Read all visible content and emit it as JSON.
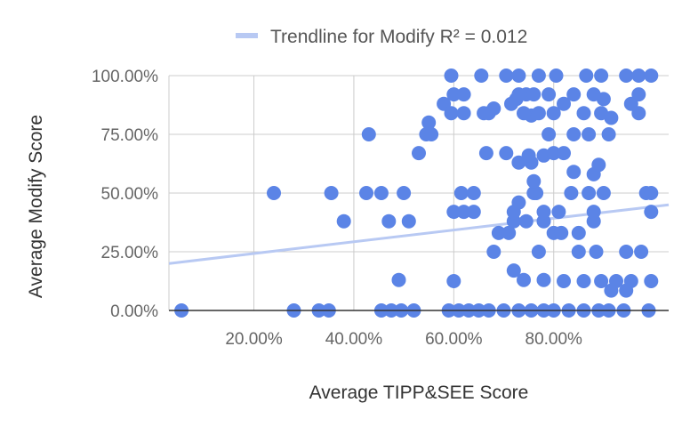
{
  "colors": {
    "points": "#5b84e6",
    "trendline": "#b8c9f3",
    "grid": "#cccccc",
    "axis": "#333333"
  },
  "legend": {
    "label": "Trendline for Modify R² = 0.012",
    "position": "top"
  },
  "chart_data": {
    "type": "scatter",
    "xlabel": "Average TIPP&SEE Score",
    "ylabel": "Average Modify Score",
    "xlim": [
      0.03,
      1.03
    ],
    "ylim": [
      0,
      1
    ],
    "xticks": [
      0.2,
      0.4,
      0.6,
      0.8
    ],
    "xtick_labels": [
      "20.00%",
      "40.00%",
      "60.00%",
      "80.00%"
    ],
    "yticks": [
      0,
      0.25,
      0.5,
      0.75,
      1
    ],
    "ytick_labels": [
      "0.00%",
      "25.00%",
      "50.00%",
      "75.00%",
      "100.00%"
    ],
    "grid": true,
    "trendline": {
      "name": "Trendline for Modify",
      "r_squared": 0.012,
      "start": [
        0.03,
        0.2
      ],
      "end": [
        1.03,
        0.45
      ]
    },
    "series": [
      {
        "points": [
          [
            0.055,
            0
          ],
          [
            0.28,
            0
          ],
          [
            0.33,
            0
          ],
          [
            0.35,
            0
          ],
          [
            0.455,
            0
          ],
          [
            0.475,
            0
          ],
          [
            0.495,
            0
          ],
          [
            0.52,
            0
          ],
          [
            0.59,
            0
          ],
          [
            0.61,
            0
          ],
          [
            0.63,
            0
          ],
          [
            0.65,
            0
          ],
          [
            0.67,
            0
          ],
          [
            0.7,
            0
          ],
          [
            0.73,
            0
          ],
          [
            0.755,
            0
          ],
          [
            0.78,
            0
          ],
          [
            0.8,
            0
          ],
          [
            0.83,
            0
          ],
          [
            0.86,
            0
          ],
          [
            0.89,
            0
          ],
          [
            0.91,
            0
          ],
          [
            0.94,
            0
          ],
          [
            0.99,
            0
          ],
          [
            0.6,
            0.125
          ],
          [
            0.82,
            0.125
          ],
          [
            0.86,
            0.125
          ],
          [
            0.895,
            0.125
          ],
          [
            0.925,
            0.125
          ],
          [
            0.955,
            0.125
          ],
          [
            0.995,
            0.125
          ],
          [
            0.49,
            0.13
          ],
          [
            0.74,
            0.13
          ],
          [
            0.78,
            0.13
          ],
          [
            0.915,
            0.085
          ],
          [
            0.945,
            0.085
          ],
          [
            0.72,
            0.17
          ],
          [
            0.68,
            0.25
          ],
          [
            0.77,
            0.25
          ],
          [
            0.85,
            0.25
          ],
          [
            0.885,
            0.25
          ],
          [
            0.945,
            0.25
          ],
          [
            0.975,
            0.25
          ],
          [
            0.69,
            0.33
          ],
          [
            0.71,
            0.33
          ],
          [
            0.8,
            0.33
          ],
          [
            0.815,
            0.33
          ],
          [
            0.85,
            0.33
          ],
          [
            0.24,
            0.5
          ],
          [
            0.355,
            0.5
          ],
          [
            0.425,
            0.5
          ],
          [
            0.455,
            0.5
          ],
          [
            0.5,
            0.5
          ],
          [
            0.615,
            0.5
          ],
          [
            0.64,
            0.5
          ],
          [
            0.765,
            0.5
          ],
          [
            0.835,
            0.5
          ],
          [
            0.87,
            0.5
          ],
          [
            0.9,
            0.5
          ],
          [
            0.985,
            0.5
          ],
          [
            0.995,
            0.5
          ],
          [
            0.38,
            0.38
          ],
          [
            0.47,
            0.38
          ],
          [
            0.51,
            0.38
          ],
          [
            0.72,
            0.38
          ],
          [
            0.745,
            0.38
          ],
          [
            0.78,
            0.38
          ],
          [
            0.88,
            0.38
          ],
          [
            0.6,
            0.42
          ],
          [
            0.62,
            0.42
          ],
          [
            0.64,
            0.42
          ],
          [
            0.72,
            0.42
          ],
          [
            0.78,
            0.42
          ],
          [
            0.81,
            0.42
          ],
          [
            0.88,
            0.42
          ],
          [
            0.995,
            0.42
          ],
          [
            0.73,
            0.46
          ],
          [
            0.76,
            0.5
          ],
          [
            0.76,
            0.55
          ],
          [
            0.73,
            0.63
          ],
          [
            0.755,
            0.63
          ],
          [
            0.75,
            0.66
          ],
          [
            0.78,
            0.66
          ],
          [
            0.8,
            0.67
          ],
          [
            0.82,
            0.67
          ],
          [
            0.665,
            0.67
          ],
          [
            0.705,
            0.67
          ],
          [
            0.84,
            0.59
          ],
          [
            0.88,
            0.58
          ],
          [
            0.89,
            0.62
          ],
          [
            0.43,
            0.75
          ],
          [
            0.53,
            0.67
          ],
          [
            0.545,
            0.75
          ],
          [
            0.555,
            0.75
          ],
          [
            0.79,
            0.75
          ],
          [
            0.84,
            0.75
          ],
          [
            0.87,
            0.75
          ],
          [
            0.91,
            0.75
          ],
          [
            0.55,
            0.8
          ],
          [
            0.755,
            0.83
          ],
          [
            0.62,
            0.84
          ],
          [
            0.67,
            0.84
          ],
          [
            0.715,
            0.88
          ],
          [
            0.725,
            0.9
          ],
          [
            0.745,
            0.92
          ],
          [
            0.79,
            0.92
          ],
          [
            0.84,
            0.92
          ],
          [
            0.88,
            0.92
          ],
          [
            0.9,
            0.9
          ],
          [
            0.955,
            0.88
          ],
          [
            0.97,
            0.92
          ],
          [
            0.82,
            0.88
          ],
          [
            0.915,
            0.82
          ],
          [
            0.58,
            0.88
          ],
          [
            0.595,
            0.84
          ],
          [
            0.66,
            0.84
          ],
          [
            0.68,
            0.86
          ],
          [
            0.74,
            0.84
          ],
          [
            0.77,
            0.84
          ],
          [
            0.8,
            0.84
          ],
          [
            0.86,
            0.84
          ],
          [
            0.895,
            0.84
          ],
          [
            0.97,
            0.84
          ],
          [
            0.6,
            0.92
          ],
          [
            0.62,
            0.92
          ],
          [
            0.73,
            0.92
          ],
          [
            0.76,
            0.92
          ],
          [
            0.595,
            1
          ],
          [
            0.655,
            1
          ],
          [
            0.705,
            1
          ],
          [
            0.73,
            1
          ],
          [
            0.77,
            1
          ],
          [
            0.805,
            1
          ],
          [
            0.865,
            1
          ],
          [
            0.895,
            1
          ],
          [
            0.945,
            1
          ],
          [
            0.97,
            1
          ],
          [
            0.995,
            1
          ]
        ]
      }
    ]
  }
}
